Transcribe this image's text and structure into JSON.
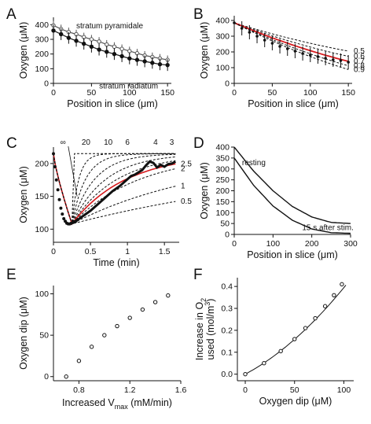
{
  "figure": {
    "colors": {
      "ink": "#111111",
      "red": "#d7191c",
      "grey": "#999999"
    }
  },
  "chart_data": [
    {
      "id": "A",
      "panel_label": "A",
      "type": "line",
      "xlabel": "Position in slice (μm)",
      "ylabel": "Oxygen (μM)",
      "xlim": [
        0,
        155
      ],
      "ylim": [
        0,
        450
      ],
      "xticks": [
        0,
        50,
        100,
        150
      ],
      "yticks": [
        0,
        100,
        200,
        300,
        400
      ],
      "series": [
        {
          "name": "stratum pyramidale",
          "marker": "open",
          "x": [
            0,
            10,
            20,
            30,
            40,
            50,
            60,
            70,
            80,
            90,
            100,
            110,
            120,
            130,
            140,
            150
          ],
          "y": [
            395,
            370,
            350,
            335,
            315,
            300,
            285,
            265,
            250,
            235,
            220,
            205,
            190,
            180,
            170,
            160
          ],
          "err": [
            30,
            30,
            30,
            30,
            30,
            30,
            30,
            30,
            30,
            30,
            30,
            30,
            30,
            30,
            30,
            30
          ]
        },
        {
          "name": "stratum radiatum",
          "marker": "filled",
          "x": [
            0,
            10,
            20,
            30,
            40,
            50,
            60,
            70,
            80,
            90,
            100,
            110,
            120,
            130,
            140,
            150
          ],
          "y": [
            360,
            335,
            310,
            290,
            270,
            250,
            230,
            215,
            200,
            185,
            170,
            160,
            150,
            140,
            130,
            125
          ],
          "err": [
            40,
            40,
            40,
            40,
            40,
            40,
            40,
            40,
            40,
            40,
            40,
            40,
            40,
            40,
            40,
            40
          ]
        }
      ]
    },
    {
      "id": "B",
      "panel_label": "B",
      "type": "line",
      "xlabel": "Position in slice (μm)",
      "ylabel": "Oxygen (μM)",
      "xlim": [
        0,
        155
      ],
      "ylim": [
        0,
        420
      ],
      "xticks": [
        0,
        50,
        100,
        150
      ],
      "yticks": [
        0,
        100,
        200,
        300,
        400
      ],
      "data": {
        "x": [
          0,
          10,
          20,
          30,
          40,
          50,
          60,
          70,
          80,
          90,
          100,
          110,
          120,
          130,
          140,
          150
        ],
        "y": [
          385,
          350,
          325,
          300,
          275,
          255,
          235,
          220,
          205,
          190,
          180,
          170,
          160,
          150,
          145,
          135
        ],
        "err": [
          45,
          45,
          45,
          45,
          45,
          45,
          45,
          45,
          45,
          45,
          45,
          45,
          45,
          45,
          45,
          45
        ]
      },
      "model_curves": [
        {
          "label": "0.5",
          "end": 205
        },
        {
          "label": "0.6",
          "end": 172
        },
        {
          "label": "0.7",
          "end": 140,
          "highlight": true
        },
        {
          "label": "0.8",
          "end": 112
        },
        {
          "label": "0.9",
          "end": 88
        }
      ]
    },
    {
      "id": "C",
      "panel_label": "C",
      "type": "line",
      "xlabel": "Time (min)",
      "ylabel": "Oxygen (μM)",
      "xlim": [
        0,
        1.7
      ],
      "ylim": [
        80,
        225
      ],
      "xticks": [
        0,
        0.5,
        1,
        1.5
      ],
      "xtick_labels": [
        "0",
        "0.5",
        "1",
        "1.5"
      ],
      "yticks": [
        100,
        150,
        200
      ],
      "data_points": {
        "x": [
          0.0,
          0.02,
          0.04,
          0.06,
          0.08,
          0.1,
          0.12,
          0.14,
          0.16,
          0.18,
          0.2,
          0.22,
          0.24,
          0.26,
          0.28,
          0.3
        ],
        "y": [
          215,
          195,
          175,
          160,
          145,
          132,
          123,
          116,
          112,
          109,
          108,
          108,
          109,
          110,
          111,
          112
        ]
      },
      "trace": {
        "x": [
          0.3,
          0.4,
          0.5,
          0.6,
          0.7,
          0.8,
          0.9,
          1.0,
          1.05,
          1.1,
          1.2,
          1.25,
          1.3,
          1.35,
          1.4,
          1.45,
          1.5,
          1.55,
          1.6,
          1.65
        ],
        "y": [
          112,
          120,
          128,
          138,
          148,
          158,
          166,
          176,
          181,
          183,
          190,
          197,
          203,
          201,
          194,
          198,
          195,
          199,
          200,
          203
        ]
      },
      "model_curves": [
        {
          "label": "∞",
          "rate": 1000
        },
        {
          "label": "20",
          "rate": 20
        },
        {
          "label": "10",
          "rate": 10
        },
        {
          "label": "6",
          "rate": 6
        },
        {
          "label": "4",
          "rate": 4
        },
        {
          "label": "3",
          "rate": 3
        },
        {
          "label": "2.5",
          "rate": 2.5,
          "highlight": true
        },
        {
          "label": "2",
          "rate": 2
        },
        {
          "label": "1",
          "rate": 1
        },
        {
          "label": "0.5",
          "rate": 0.5
        }
      ]
    },
    {
      "id": "D",
      "panel_label": "D",
      "type": "line",
      "xlabel": "Position in slice (μm)",
      "ylabel": "Oxygen (μM)",
      "xlim": [
        0,
        300
      ],
      "ylim": [
        0,
        400
      ],
      "xticks": [
        0,
        100,
        200,
        300
      ],
      "yticks": [
        0,
        50,
        100,
        150,
        200,
        250,
        300,
        350,
        400
      ],
      "series": [
        {
          "name": "resting",
          "x": [
            0,
            50,
            100,
            150,
            200,
            250,
            300
          ],
          "y": [
            400,
            290,
            200,
            128,
            80,
            55,
            50
          ]
        },
        {
          "name": "15 s after stim.",
          "x": [
            0,
            50,
            100,
            150,
            200,
            250,
            300
          ],
          "y": [
            350,
            225,
            130,
            65,
            25,
            8,
            5
          ]
        }
      ]
    },
    {
      "id": "E",
      "panel_label": "E",
      "type": "scatter",
      "xlabel": "Increased V",
      "xlabel_sub": "max",
      "xlabel_tail": " (mM/min)",
      "ylabel": "Oxygen dip (μM)",
      "xlim": [
        0.6,
        1.6
      ],
      "ylim": [
        -5,
        110
      ],
      "xticks": [
        0.8,
        1.2,
        1.6
      ],
      "xtick_labels": [
        "0.8",
        "1.2",
        "1.6"
      ],
      "yticks": [
        0,
        50,
        100
      ],
      "x": [
        0.7,
        0.8,
        0.9,
        1.0,
        1.1,
        1.2,
        1.3,
        1.4,
        1.5
      ],
      "y": [
        0,
        19,
        36,
        50,
        61,
        71,
        81,
        90,
        98
      ]
    },
    {
      "id": "F",
      "panel_label": "F",
      "type": "scatter",
      "xlabel": "Oxygen dip (μM)",
      "ylabel_line1": "Increase in O",
      "ylabel_line1_sub": "2",
      "ylabel_line2": "used (mol/m",
      "ylabel_line2_sup": "3",
      "ylabel_line2_tail": ")",
      "xlim": [
        -8,
        110
      ],
      "ylim": [
        -0.03,
        0.44
      ],
      "xticks": [
        0,
        50,
        100
      ],
      "yticks": [
        0.0,
        0.1,
        0.2,
        0.3,
        0.4
      ],
      "ytick_labels": [
        "0.0",
        "0.1",
        "0.2",
        "0.3",
        "0.4"
      ],
      "x": [
        0,
        19,
        36,
        50,
        61,
        71,
        81,
        90,
        98
      ],
      "y": [
        0.0,
        0.05,
        0.105,
        0.16,
        0.21,
        0.255,
        0.31,
        0.36,
        0.41
      ]
    }
  ]
}
